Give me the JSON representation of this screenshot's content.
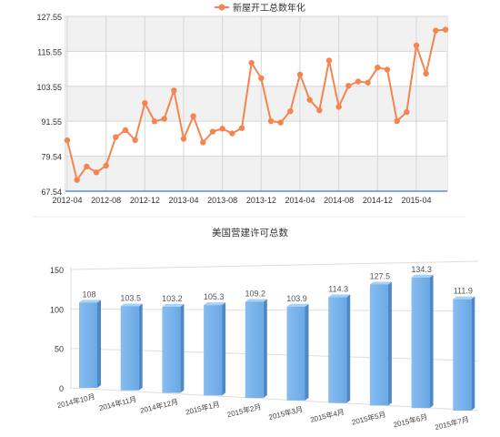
{
  "chart_data": [
    {
      "type": "line",
      "legend": {
        "label": "新屋开工总数年化",
        "placement": "top-center"
      },
      "color": "#f58450",
      "y_ticks": [
        "67.54",
        "79.54",
        "91.55",
        "103.55",
        "115.55",
        "127.55"
      ],
      "ylim": [
        67.54,
        127.55
      ],
      "x_ticks": [
        "2012-04",
        "2012-08",
        "2012-12",
        "2013-04",
        "2013-08",
        "2013-12",
        "2014-04",
        "2014-08",
        "2014-12",
        "2015-04"
      ],
      "grid": true,
      "series": [
        {
          "x": [
            "2012-04",
            "2012-05",
            "2012-06",
            "2012-07",
            "2012-08",
            "2012-09",
            "2012-10",
            "2012-11",
            "2012-12",
            "2013-01",
            "2013-02",
            "2013-03",
            "2013-04",
            "2013-05",
            "2013-06",
            "2013-07",
            "2013-08",
            "2013-09",
            "2013-10",
            "2013-11",
            "2013-12",
            "2014-01",
            "2014-02",
            "2014-03",
            "2014-04",
            "2014-05",
            "2014-06",
            "2014-07",
            "2014-08",
            "2014-09",
            "2014-10",
            "2014-11",
            "2014-12",
            "2015-01",
            "2015-02",
            "2015-03",
            "2015-04",
            "2015-05",
            "2015-06",
            "2015-07"
          ],
          "values": [
            85.0,
            71.4,
            76.0,
            74.0,
            76.3,
            86.1,
            88.5,
            85.1,
            97.8,
            91.5,
            92.4,
            102.1,
            85.5,
            93.3,
            84.3,
            88.0,
            89.0,
            87.4,
            89.2,
            111.6,
            106.3,
            91.6,
            91.1,
            95.0,
            107.6,
            98.9,
            95.3,
            112.4,
            96.5,
            103.7,
            105.2,
            104.8,
            110.0,
            109.3,
            91.6,
            94.7,
            117.6,
            107.9,
            122.7,
            123.0
          ]
        }
      ]
    },
    {
      "type": "bar",
      "title": "美国营建许可总数",
      "categories": [
        "2014年10月",
        "2014年11月",
        "2014年12月",
        "2015年1月",
        "2015年2月",
        "2015年3月",
        "2015年4月",
        "2015年5月",
        "2015年6月",
        "2015年7月"
      ],
      "values": [
        108,
        103.5,
        103.2,
        105.3,
        109.2,
        103.9,
        114.3,
        127.5,
        134.3,
        111.9
      ],
      "value_labels": [
        "108",
        "103.5",
        "103.2",
        "105.3",
        "109.2",
        "103.9",
        "114.3",
        "127.5",
        "134.3",
        "111.9"
      ],
      "y_ticks": [
        "0",
        "50",
        "100",
        "150"
      ],
      "ylim": [
        0,
        150
      ],
      "grid": true,
      "color": "#7cb5ec"
    }
  ]
}
